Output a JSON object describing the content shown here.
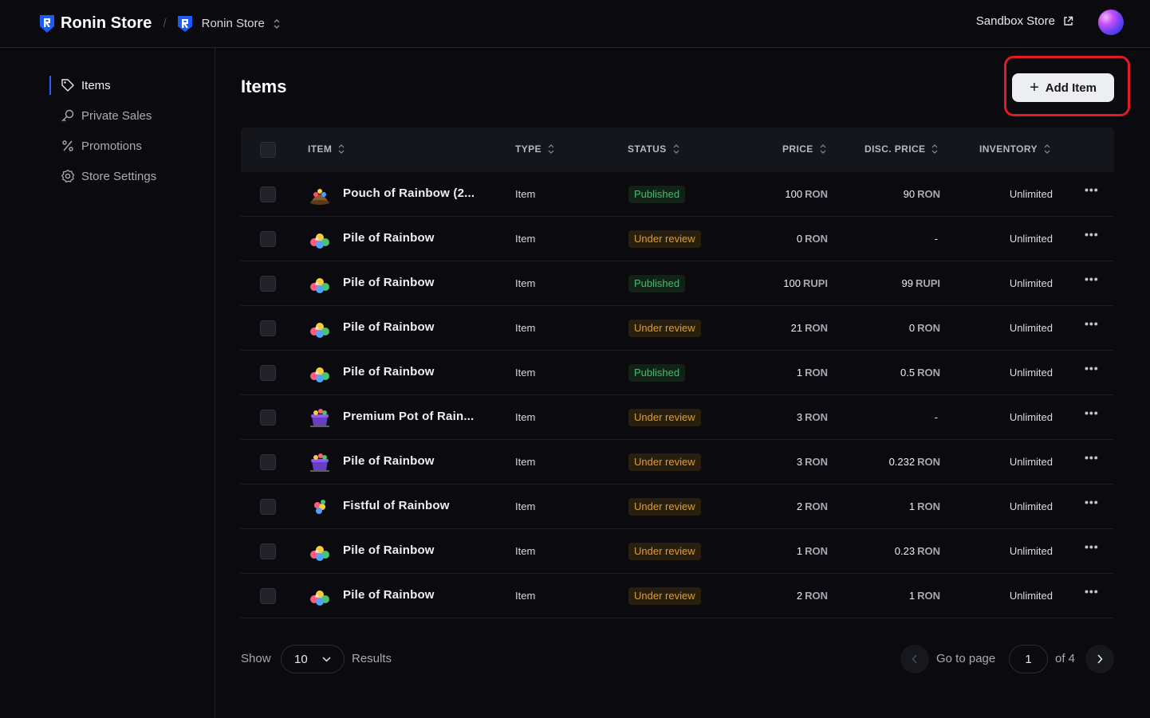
{
  "header": {
    "brand": "Ronin Store",
    "breadcrumb_separator": "/",
    "store_name": "Ronin Store",
    "sandbox_label": "Sandbox Store"
  },
  "sidebar": {
    "items": [
      {
        "label": "Items",
        "icon": "tag-icon",
        "active": true
      },
      {
        "label": "Private Sales",
        "icon": "key-icon",
        "active": false
      },
      {
        "label": "Promotions",
        "icon": "percent-icon",
        "active": false
      },
      {
        "label": "Store Settings",
        "icon": "gear-icon",
        "active": false
      }
    ]
  },
  "main": {
    "title": "Items",
    "add_button_label": "Add Item",
    "columns": [
      "ITEM",
      "TYPE",
      "STATUS",
      "PRICE",
      "DISC. PRICE",
      "INVENTORY"
    ],
    "rows": [
      {
        "thumb": "pouch",
        "name": "Pouch of Rainbow (2...",
        "type": "Item",
        "status": "Published",
        "price": "100",
        "price_cur": "RON",
        "disc": "90",
        "disc_cur": "RON",
        "inventory": "Unlimited"
      },
      {
        "thumb": "pile",
        "name": "Pile of Rainbow",
        "type": "Item",
        "status": "Under review",
        "price": "0",
        "price_cur": "RON",
        "disc": "-",
        "disc_cur": "",
        "inventory": "Unlimited"
      },
      {
        "thumb": "pile",
        "name": "Pile of Rainbow",
        "type": "Item",
        "status": "Published",
        "price": "100",
        "price_cur": "RUPI",
        "disc": "99",
        "disc_cur": "RUPI",
        "inventory": "Unlimited"
      },
      {
        "thumb": "pile",
        "name": "Pile of Rainbow",
        "type": "Item",
        "status": "Under review",
        "price": "21",
        "price_cur": "RON",
        "disc": "0",
        "disc_cur": "RON",
        "inventory": "Unlimited"
      },
      {
        "thumb": "pile",
        "name": "Pile of Rainbow",
        "type": "Item",
        "status": "Published",
        "price": "1",
        "price_cur": "RON",
        "disc": "0.5",
        "disc_cur": "RON",
        "inventory": "Unlimited"
      },
      {
        "thumb": "pot",
        "name": "Premium Pot of Rain...",
        "type": "Item",
        "status": "Under review",
        "price": "3",
        "price_cur": "RON",
        "disc": "-",
        "disc_cur": "",
        "inventory": "Unlimited"
      },
      {
        "thumb": "pot",
        "name": "Pile of Rainbow",
        "type": "Item",
        "status": "Under review",
        "price": "3",
        "price_cur": "RON",
        "disc": "0.232",
        "disc_cur": "RON",
        "inventory": "Unlimited"
      },
      {
        "thumb": "fist",
        "name": "Fistful of Rainbow",
        "type": "Item",
        "status": "Under review",
        "price": "2",
        "price_cur": "RON",
        "disc": "1",
        "disc_cur": "RON",
        "inventory": "Unlimited"
      },
      {
        "thumb": "pile",
        "name": "Pile of Rainbow",
        "type": "Item",
        "status": "Under review",
        "price": "1",
        "price_cur": "RON",
        "disc": "0.23",
        "disc_cur": "RON",
        "inventory": "Unlimited"
      },
      {
        "thumb": "pile",
        "name": "Pile of Rainbow",
        "type": "Item",
        "status": "Under review",
        "price": "2",
        "price_cur": "RON",
        "disc": "1",
        "disc_cur": "RON",
        "inventory": "Unlimited"
      }
    ],
    "more_label": "•••"
  },
  "footer": {
    "show_label": "Show",
    "page_size": "10",
    "results_label": "Results",
    "goto_label": "Go to page",
    "current_page": "1",
    "of_label": "of 4"
  },
  "colors": {
    "published": "#35c46b",
    "under_review": "#e59a27",
    "accent": "#2b5df0",
    "highlight": "#e01b24"
  }
}
